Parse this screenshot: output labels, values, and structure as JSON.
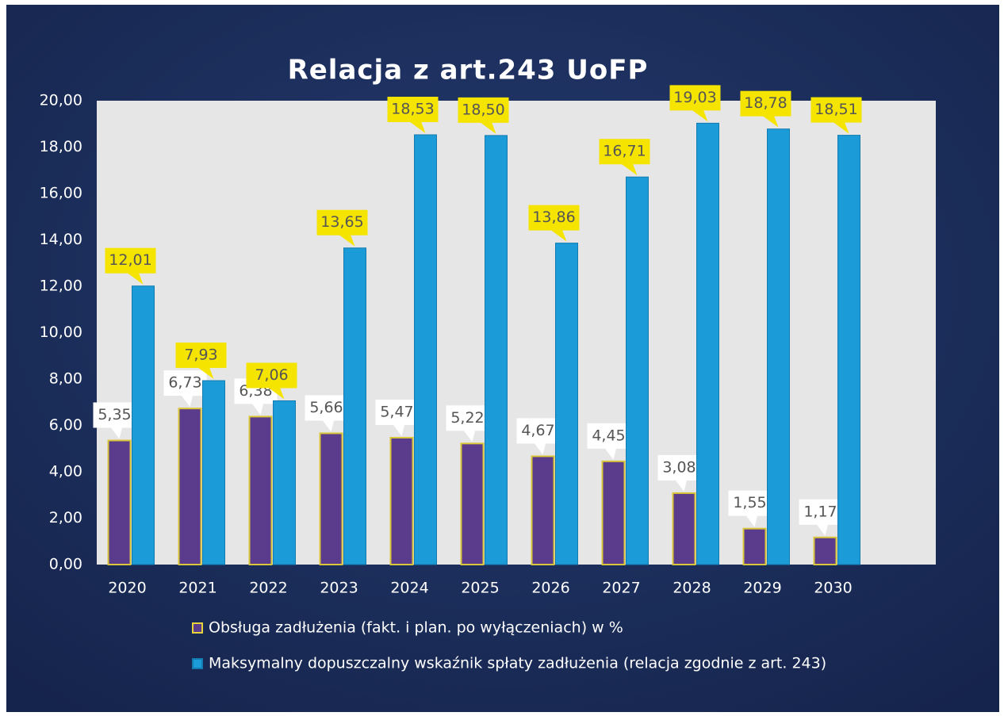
{
  "chart_data": {
    "type": "bar",
    "title": "Relacja z art.243 UoFP",
    "categories": [
      "2020",
      "2021",
      "2022",
      "2023",
      "2024",
      "2025",
      "2026",
      "2027",
      "2028",
      "2029",
      "2030"
    ],
    "series": [
      {
        "name": "Obsługa zadłużenia (fakt. i plan. po wyłączeniach) w %",
        "color": "#5b3c8c",
        "values": [
          5.35,
          6.73,
          6.38,
          5.66,
          5.47,
          5.22,
          4.67,
          4.45,
          3.08,
          1.55,
          1.17
        ],
        "value_labels": [
          "5,35",
          "6,73",
          "6,38",
          "5,66",
          "5,47",
          "5,22",
          "4,67",
          "4,45",
          "3,08",
          "1,55",
          "1,17"
        ]
      },
      {
        "name": "Maksymalny dopuszczalny wskaźnik spłaty  zadłużenia (relacja zgodnie z art. 243)",
        "color": "#1b9bd7",
        "values": [
          12.01,
          7.93,
          7.06,
          13.65,
          18.53,
          18.5,
          13.86,
          16.71,
          19.03,
          18.78,
          18.51
        ],
        "value_labels": [
          "12,01",
          "7,93",
          "7,06",
          "13,65",
          "18,53",
          "18,50",
          "13,86",
          "16,71",
          "19,03",
          "18,78",
          "18,51"
        ]
      }
    ],
    "ylim": [
      0,
      20
    ],
    "yticks": [
      {
        "value": 0,
        "label": "0,00"
      },
      {
        "value": 2,
        "label": "2,00"
      },
      {
        "value": 4,
        "label": "4,00"
      },
      {
        "value": 6,
        "label": "6,00"
      },
      {
        "value": 8,
        "label": "8,00"
      },
      {
        "value": 10,
        "label": "10,00"
      },
      {
        "value": 12,
        "label": "12,00"
      },
      {
        "value": 14,
        "label": "14,00"
      },
      {
        "value": 16,
        "label": "16,00"
      },
      {
        "value": 18,
        "label": "18,00"
      },
      {
        "value": 20,
        "label": "20,00"
      }
    ],
    "grid": false
  }
}
